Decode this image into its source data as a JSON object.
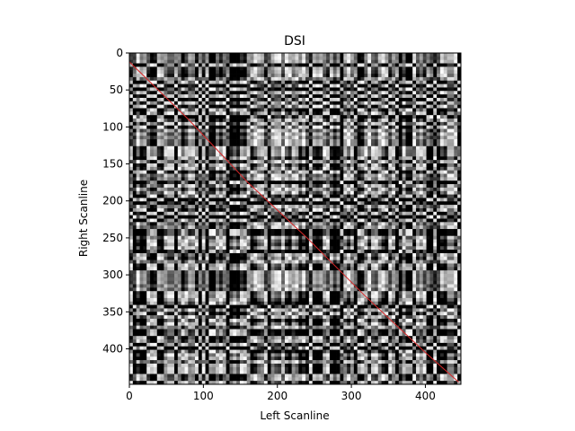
{
  "chart_data": {
    "type": "heatmap",
    "title": "DSI",
    "xlabel": "Left Scanline",
    "ylabel": "Right Scanline",
    "xlim": [
      0,
      448
    ],
    "ylim": [
      448,
      0
    ],
    "x_ticks": [
      0,
      100,
      200,
      300,
      400
    ],
    "y_ticks": [
      0,
      50,
      100,
      150,
      200,
      250,
      300,
      350,
      400
    ],
    "colormap": "gray",
    "grid": false,
    "matrix_size": [
      448,
      448
    ],
    "path": {
      "color": "#d62728",
      "description_points": [
        [
          0,
          12
        ],
        [
          80,
          90
        ],
        [
          160,
          175
        ],
        [
          240,
          250
        ],
        [
          320,
          330
        ],
        [
          400,
          405
        ],
        [
          445,
          445
        ]
      ]
    }
  },
  "colors": {
    "path": "#d62728",
    "frame": "#000000",
    "background": "#ffffff"
  }
}
